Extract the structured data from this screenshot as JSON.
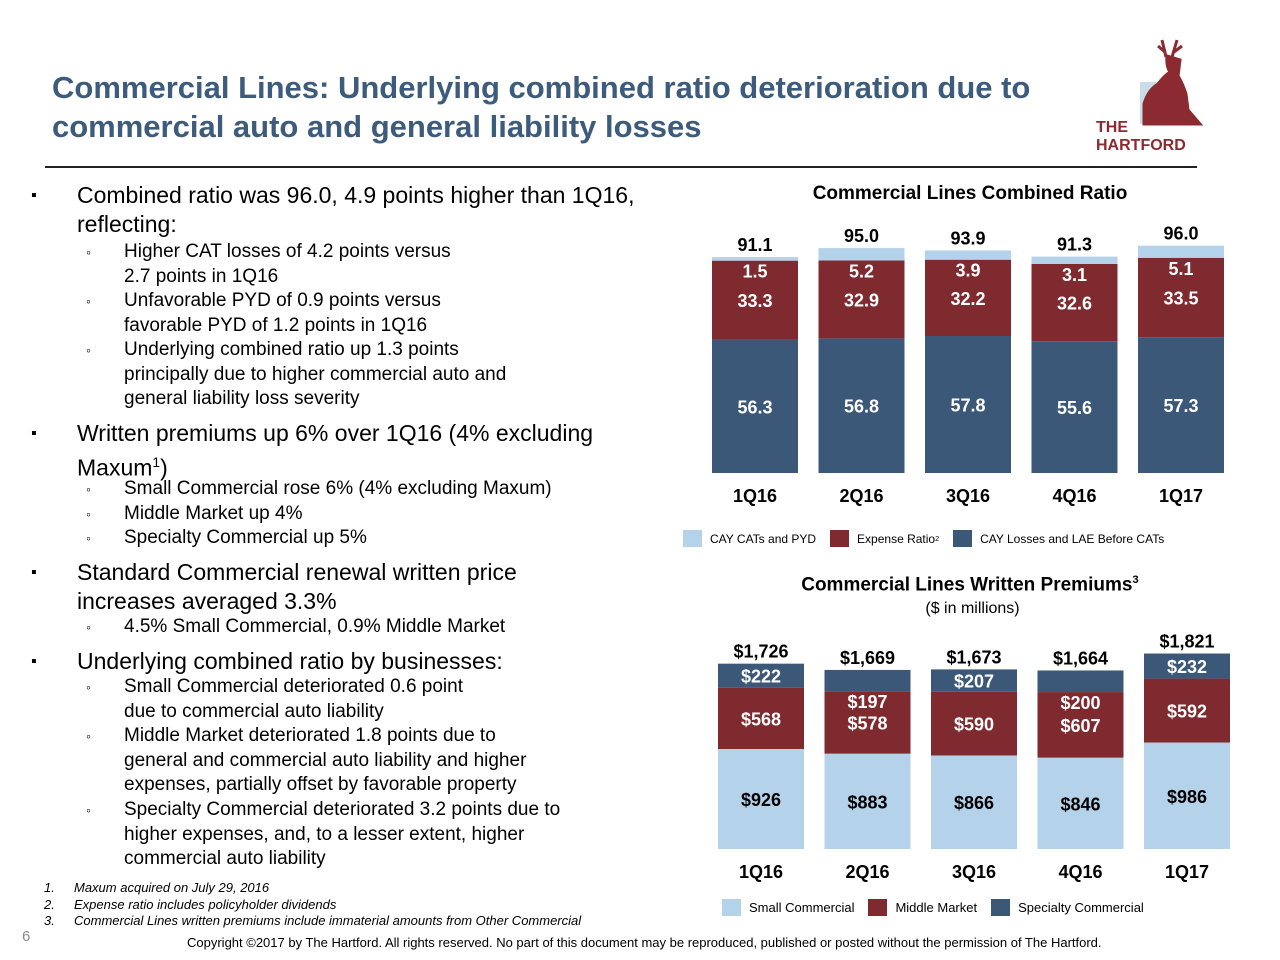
{
  "slide": {
    "title": "Commercial Lines: Underlying combined ratio deterioration due to commercial auto and general liability losses",
    "logo_text": "THE HARTFORD",
    "page_number": "6",
    "copyright": "Copyright ©2017 by The Hartford. All rights reserved. No part of this document may be reproduced, published or posted without the permission of The Hartford."
  },
  "bullets": {
    "b1": "Combined ratio was 96.0, 4.9 points higher than 1Q16, reflecting:",
    "b1_subs": [
      {
        "lines": [
          "Higher CAT losses of 4.2 points versus",
          "2.7 points in 1Q16"
        ]
      },
      {
        "lines": [
          "Unfavorable PYD of 0.9 points versus",
          "favorable PYD of 1.2 points in 1Q16"
        ]
      },
      {
        "lines": [
          "Underlying combined ratio up 1.3 points",
          "principally due to higher commercial auto and",
          "general liability loss severity"
        ]
      }
    ],
    "b2": "Written premiums up 6% over 1Q16 (4% excluding Maxum",
    "b2_sup": "1",
    "b2_end": ")",
    "b2_subs": [
      {
        "lines": [
          "Small Commercial rose 6% (4% excluding Maxum)"
        ]
      },
      {
        "lines": [
          "Middle Market up 4%"
        ]
      },
      {
        "lines": [
          "Specialty Commercial up 5%"
        ]
      }
    ],
    "b3": "Standard Commercial renewal written price increases averaged 3.3%",
    "b3_subs": [
      {
        "lines": [
          "4.5% Small Commercial, 0.9% Middle Market"
        ]
      }
    ],
    "b4": "Underlying combined ratio by businesses:",
    "b4_subs": [
      {
        "lines": [
          "Small Commercial deteriorated 0.6 point",
          "due to commercial auto liability"
        ]
      },
      {
        "lines": [
          "Middle Market deteriorated 1.8 points due to",
          "general and commercial auto liability and higher",
          "expenses, partially offset by favorable property"
        ]
      },
      {
        "lines": [
          "Specialty Commercial deteriorated 3.2 points due to",
          "higher expenses, and, to a lesser extent, higher",
          "commercial auto liability"
        ]
      }
    ]
  },
  "footnotes": [
    {
      "n": "1.",
      "text": "Maxum acquired on July 29, 2016"
    },
    {
      "n": "2.",
      "text": "Expense ratio includes policyholder dividends"
    },
    {
      "n": "3.",
      "text": "Commercial Lines written premiums include immaterial amounts from Other Commercial"
    }
  ],
  "chart_data": [
    {
      "type": "bar",
      "stacked": true,
      "title": "Commercial Lines Combined Ratio",
      "categories": [
        "1Q16",
        "2Q16",
        "3Q16",
        "4Q16",
        "1Q17"
      ],
      "totals": [
        "91.1",
        "95.0",
        "93.9",
        "91.3",
        "96.0"
      ],
      "series": [
        {
          "name": "CAY Losses and LAE Before CATs",
          "values": [
            56.3,
            56.8,
            57.8,
            55.6,
            57.3
          ],
          "color": "#3b5878",
          "label_color": "#ffffff"
        },
        {
          "name": "Expense Ratio",
          "name_sup": "2",
          "values": [
            33.3,
            32.9,
            32.2,
            32.6,
            33.5
          ],
          "color": "#7f2a2f",
          "label_color": "#ffffff"
        },
        {
          "name": "CAY CATs and PYD",
          "values": [
            1.5,
            5.2,
            3.9,
            3.1,
            5.1
          ],
          "color": "#b4d2ea",
          "label_color": "#ffffff"
        }
      ],
      "legend_order": [
        2,
        1,
        0
      ],
      "legend": "bottom"
    },
    {
      "type": "bar",
      "stacked": true,
      "title": "Commercial Lines Written Premiums",
      "title_sup": "3",
      "subtitle": "($ in millions)",
      "categories": [
        "1Q16",
        "2Q16",
        "3Q16",
        "4Q16",
        "1Q17"
      ],
      "totals": [
        "$1,726",
        "$1,669",
        "$1,673",
        "$1,664",
        "$1,821"
      ],
      "series": [
        {
          "name": "Small Commercial",
          "values": [
            926,
            883,
            866,
            846,
            986
          ],
          "labels": [
            "$926",
            "$883",
            "$866",
            "$846",
            "$986"
          ],
          "color": "#b4d2ea",
          "label_color": "#000000"
        },
        {
          "name": "Middle Market",
          "values": [
            568,
            578,
            590,
            607,
            592
          ],
          "labels": [
            "$568",
            "$578",
            "$590",
            "$607",
            "$592"
          ],
          "color": "#7f2a2f",
          "label_color": "#ffffff"
        },
        {
          "name": "Specialty Commercial",
          "values": [
            222,
            197,
            207,
            200,
            232
          ],
          "labels": [
            "$222",
            "$197",
            "$207",
            "$200",
            "$232"
          ],
          "color": "#3b5878",
          "label_color": "#ffffff"
        }
      ],
      "legend_order": [
        0,
        1,
        2
      ],
      "legend": "bottom"
    }
  ]
}
